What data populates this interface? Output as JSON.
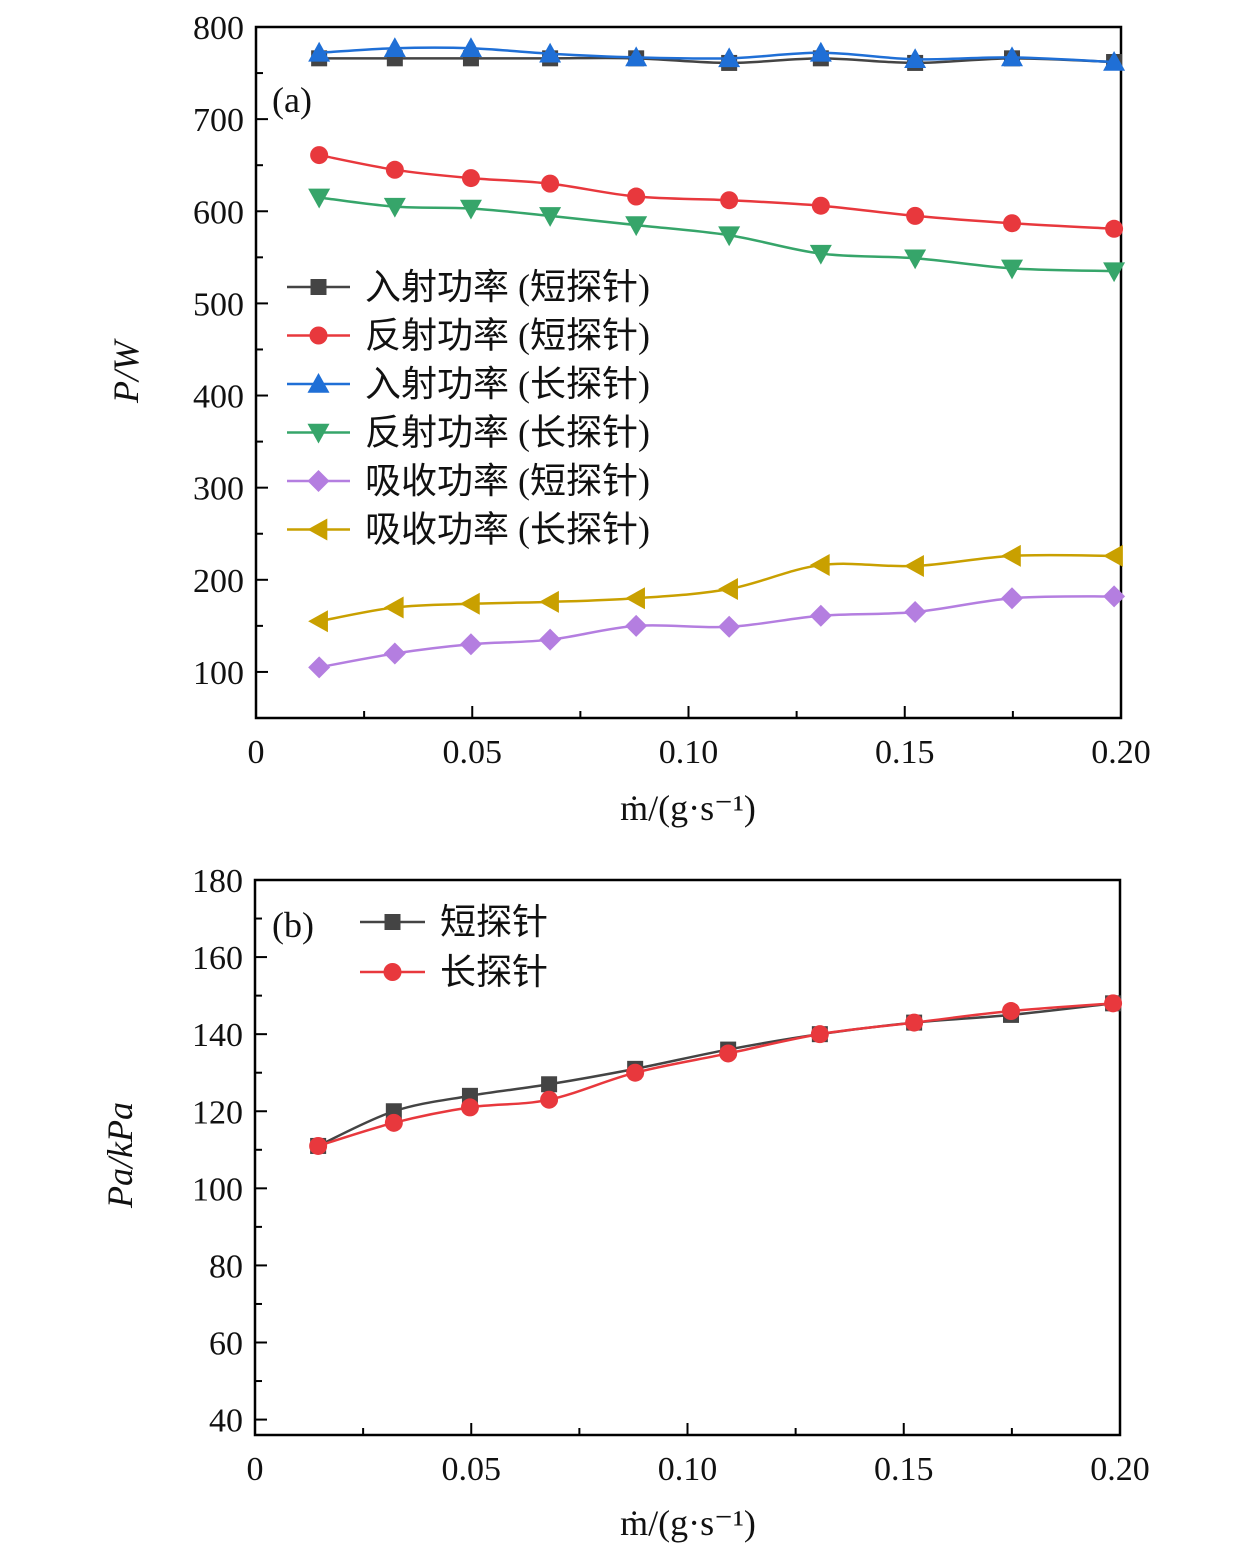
{
  "chart_data": [
    {
      "type": "line",
      "panel_label": "(a)",
      "ylabel": "P/W",
      "xlabel": "ṁ/(g·s⁻¹)",
      "xlim": [
        0,
        0.2
      ],
      "ylim": [
        50,
        800
      ],
      "xticks": [
        "0",
        "0.05",
        "0.10",
        "0.15",
        "0.20"
      ],
      "yticks": [
        "100",
        "200",
        "300",
        "400",
        "500",
        "600",
        "700",
        "800"
      ],
      "x": [
        0.0146,
        0.0321,
        0.0497,
        0.068,
        0.0879,
        0.1094,
        0.1306,
        0.1524,
        0.1748,
        0.1984
      ],
      "legend_position": "center-left",
      "series": [
        {
          "name": "入射功率 (短探针)",
          "color": "#444444",
          "marker": "square",
          "values": [
            766,
            766,
            766,
            766,
            766,
            761,
            766,
            761,
            766,
            762
          ]
        },
        {
          "name": "反射功率 (短探针)",
          "color": "#e8383d",
          "marker": "circle",
          "values": [
            661,
            645,
            636,
            630,
            616,
            612,
            606,
            595,
            587,
            581
          ]
        },
        {
          "name": "入射功率 (长探针)",
          "color": "#1f6fd6",
          "marker": "triangle-up",
          "values": [
            772,
            777,
            777,
            771,
            767,
            766,
            772,
            765,
            767,
            762
          ]
        },
        {
          "name": "反射功率 (长探针)",
          "color": "#36a56a",
          "marker": "triangle-down",
          "values": [
            615,
            605,
            603,
            595,
            585,
            574,
            554,
            549,
            538,
            535
          ]
        },
        {
          "name": "吸收功率 (短探针)",
          "color": "#b47ee0",
          "marker": "diamond",
          "values": [
            105,
            120,
            130,
            135,
            150,
            149,
            161,
            165,
            180,
            182
          ]
        },
        {
          "name": "吸收功率 (长探针)",
          "color": "#c9a000",
          "marker": "triangle-left",
          "values": [
            155,
            170,
            174,
            176,
            180,
            190,
            216,
            215,
            226,
            226
          ]
        }
      ]
    },
    {
      "type": "line",
      "panel_label": "(b)",
      "ylabel": "Pa/kPa",
      "xlabel": "ṁ/(g·s⁻¹)",
      "xlim": [
        0,
        0.2
      ],
      "ylim": [
        36,
        180
      ],
      "xticks": [
        "0",
        "0.05",
        "0.10",
        "0.15",
        "0.20"
      ],
      "yticks": [
        "40",
        "60",
        "80",
        "100",
        "120",
        "140",
        "160",
        "180"
      ],
      "x": [
        0.0146,
        0.0321,
        0.0497,
        0.068,
        0.0879,
        0.1094,
        0.1306,
        0.1524,
        0.1748,
        0.1984
      ],
      "legend_position": "top-left",
      "series": [
        {
          "name": "短探针",
          "color": "#444444",
          "marker": "square",
          "values": [
            111,
            120,
            124,
            127,
            131,
            136,
            140,
            143,
            145,
            148
          ]
        },
        {
          "name": "长探针",
          "color": "#e8383d",
          "marker": "circle",
          "values": [
            111,
            117,
            121,
            123,
            130,
            135,
            140,
            143,
            146,
            148
          ]
        }
      ]
    }
  ]
}
